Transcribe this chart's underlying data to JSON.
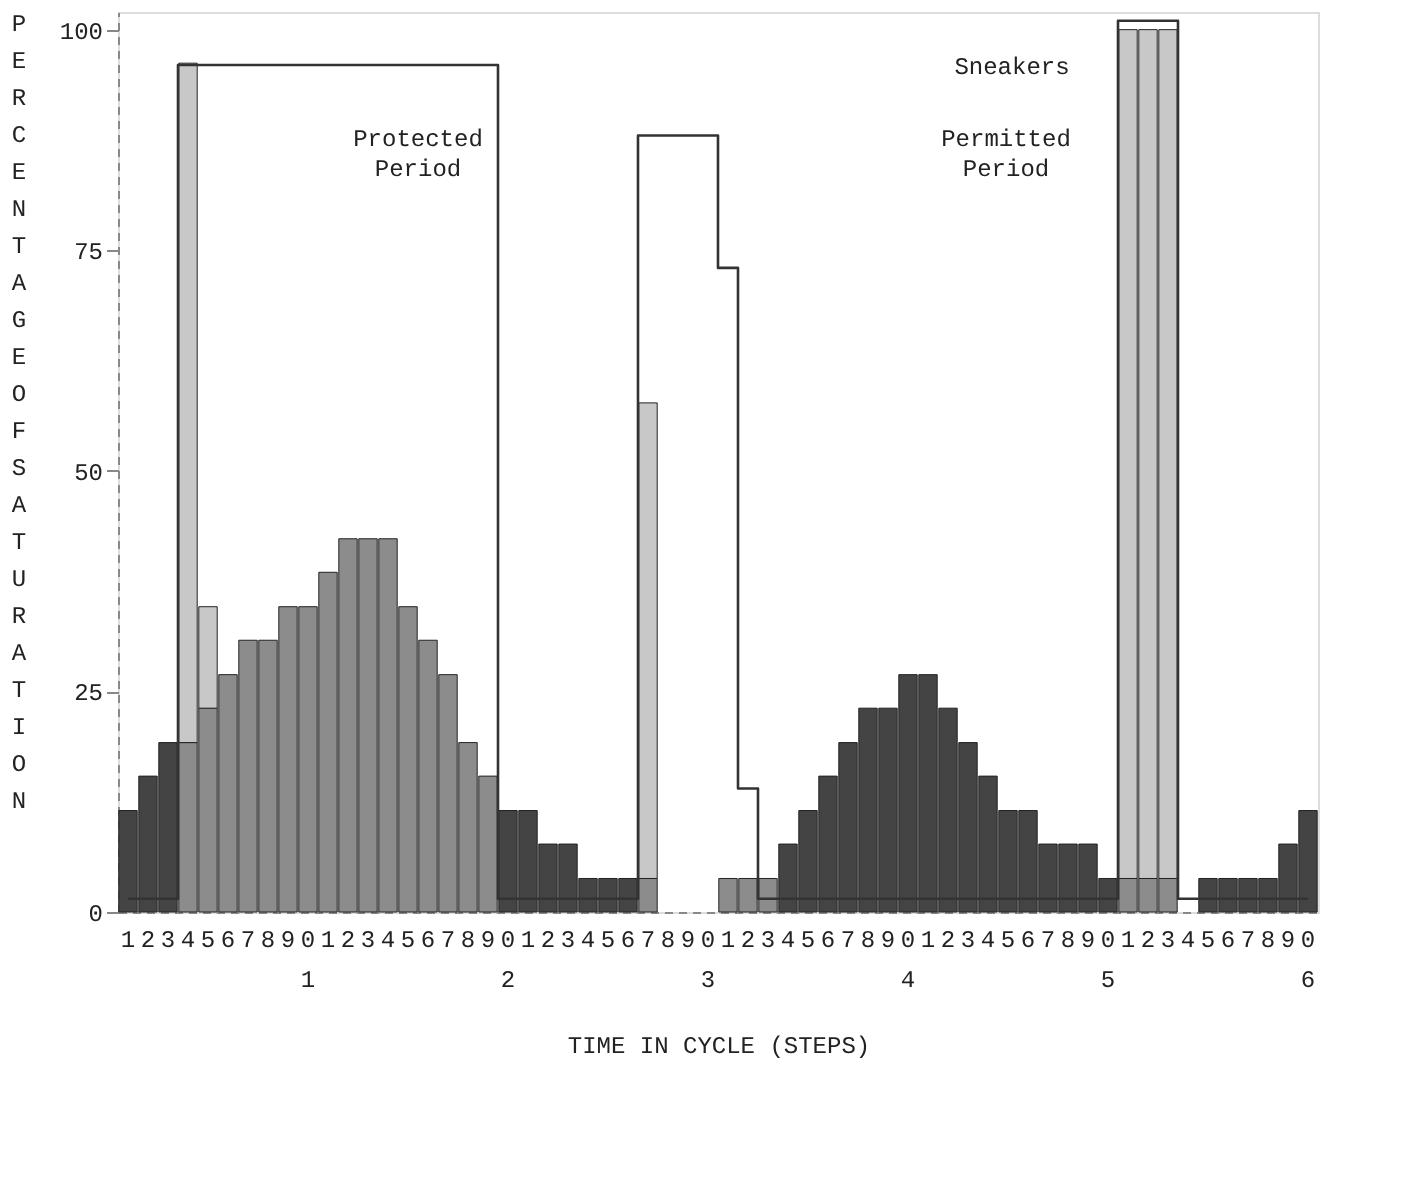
{
  "chart_data": {
    "type": "bar",
    "stacked": true,
    "xlabel": "TIME IN CYCLE (STEPS)",
    "ylabel": "PERCENTAGE OF SATURATION",
    "categories": [
      "1",
      "2",
      "3",
      "4",
      "5",
      "6",
      "7",
      "8",
      "9",
      "0\n1",
      "1",
      "2",
      "3",
      "4",
      "5",
      "6",
      "7",
      "8",
      "9",
      "0\n2",
      "1",
      "2",
      "3",
      "4",
      "5",
      "6",
      "7",
      "8",
      "9",
      "0\n3",
      "1",
      "2",
      "3",
      "4",
      "5",
      "6",
      "7",
      "8",
      "9",
      "0\n4",
      "1",
      "2",
      "3",
      "4",
      "5",
      "6",
      "7",
      "8",
      "9",
      "0\n5",
      "1",
      "2",
      "3",
      "4",
      "5",
      "6",
      "7",
      "8",
      "9",
      "0\n6"
    ],
    "ylim": [
      0,
      102
    ],
    "yticks": [
      0,
      25,
      50,
      75,
      100
    ],
    "series": [
      {
        "color": "#444444",
        "values": [
          11.5,
          15.4,
          19.2,
          null,
          null,
          null,
          null,
          null,
          null,
          null,
          null,
          null,
          null,
          null,
          null,
          null,
          null,
          null,
          null,
          11.5,
          11.5,
          7.7,
          7.7,
          3.8,
          3.8,
          3.8,
          null,
          null,
          null,
          null,
          null,
          null,
          null,
          7.7,
          11.5,
          15.4,
          19.2,
          23.1,
          23.1,
          26.9,
          26.9,
          23.1,
          19.2,
          15.4,
          11.5,
          11.5,
          7.7,
          7.7,
          7.7,
          3.8,
          null,
          null,
          null,
          null,
          3.8,
          3.8,
          3.8,
          3.8,
          7.7,
          11.5
        ]
      },
      {
        "color": "#8c8c8c",
        "values": [
          null,
          null,
          null,
          19.2,
          23.1,
          26.9,
          30.8,
          30.8,
          34.6,
          34.6,
          38.5,
          42.3,
          42.3,
          42.3,
          34.6,
          30.8,
          26.9,
          19.2,
          15.4,
          null,
          null,
          null,
          null,
          null,
          null,
          null,
          3.8,
          null,
          null,
          null,
          3.8,
          3.8,
          3.8,
          null,
          null,
          null,
          null,
          null,
          null,
          null,
          null,
          null,
          null,
          null,
          null,
          null,
          null,
          null,
          null,
          null,
          3.8,
          3.8,
          3.8,
          null,
          null,
          null,
          null,
          null,
          null,
          null
        ]
      },
      {
        "color": "#c8c8c8",
        "values": [
          null,
          null,
          null,
          77,
          11.5,
          null,
          null,
          null,
          null,
          null,
          null,
          null,
          null,
          null,
          null,
          null,
          null,
          null,
          null,
          null,
          null,
          null,
          null,
          null,
          null,
          null,
          53.9,
          null,
          null,
          null,
          null,
          null,
          null,
          null,
          null,
          null,
          null,
          null,
          null,
          null,
          null,
          null,
          null,
          null,
          null,
          null,
          null,
          null,
          null,
          null,
          96.2,
          96.2,
          96.2,
          null,
          null,
          null,
          null,
          null,
          null,
          null
        ]
      },
      {
        "type": "step",
        "color": "#333333",
        "values": [
          1.5,
          1.5,
          1.5,
          96,
          96,
          96,
          96,
          96,
          96,
          96,
          96,
          96,
          96,
          96,
          96,
          96,
          96,
          96,
          96,
          1.5,
          1.5,
          1.5,
          1.5,
          1.5,
          1.5,
          1.5,
          88,
          88,
          88,
          88,
          73,
          14,
          1.5,
          1.5,
          1.5,
          1.5,
          1.5,
          1.5,
          1.5,
          1.5,
          1.5,
          1.5,
          1.5,
          1.5,
          1.5,
          1.5,
          1.5,
          1.5,
          1.5,
          1.5,
          101,
          101,
          101,
          1.5,
          1.5,
          1.5,
          1.5,
          1.5,
          1.5,
          1.5
        ]
      }
    ],
    "annotations": [
      "Protected Period",
      "Permitted Period",
      "Sneakers"
    ]
  }
}
